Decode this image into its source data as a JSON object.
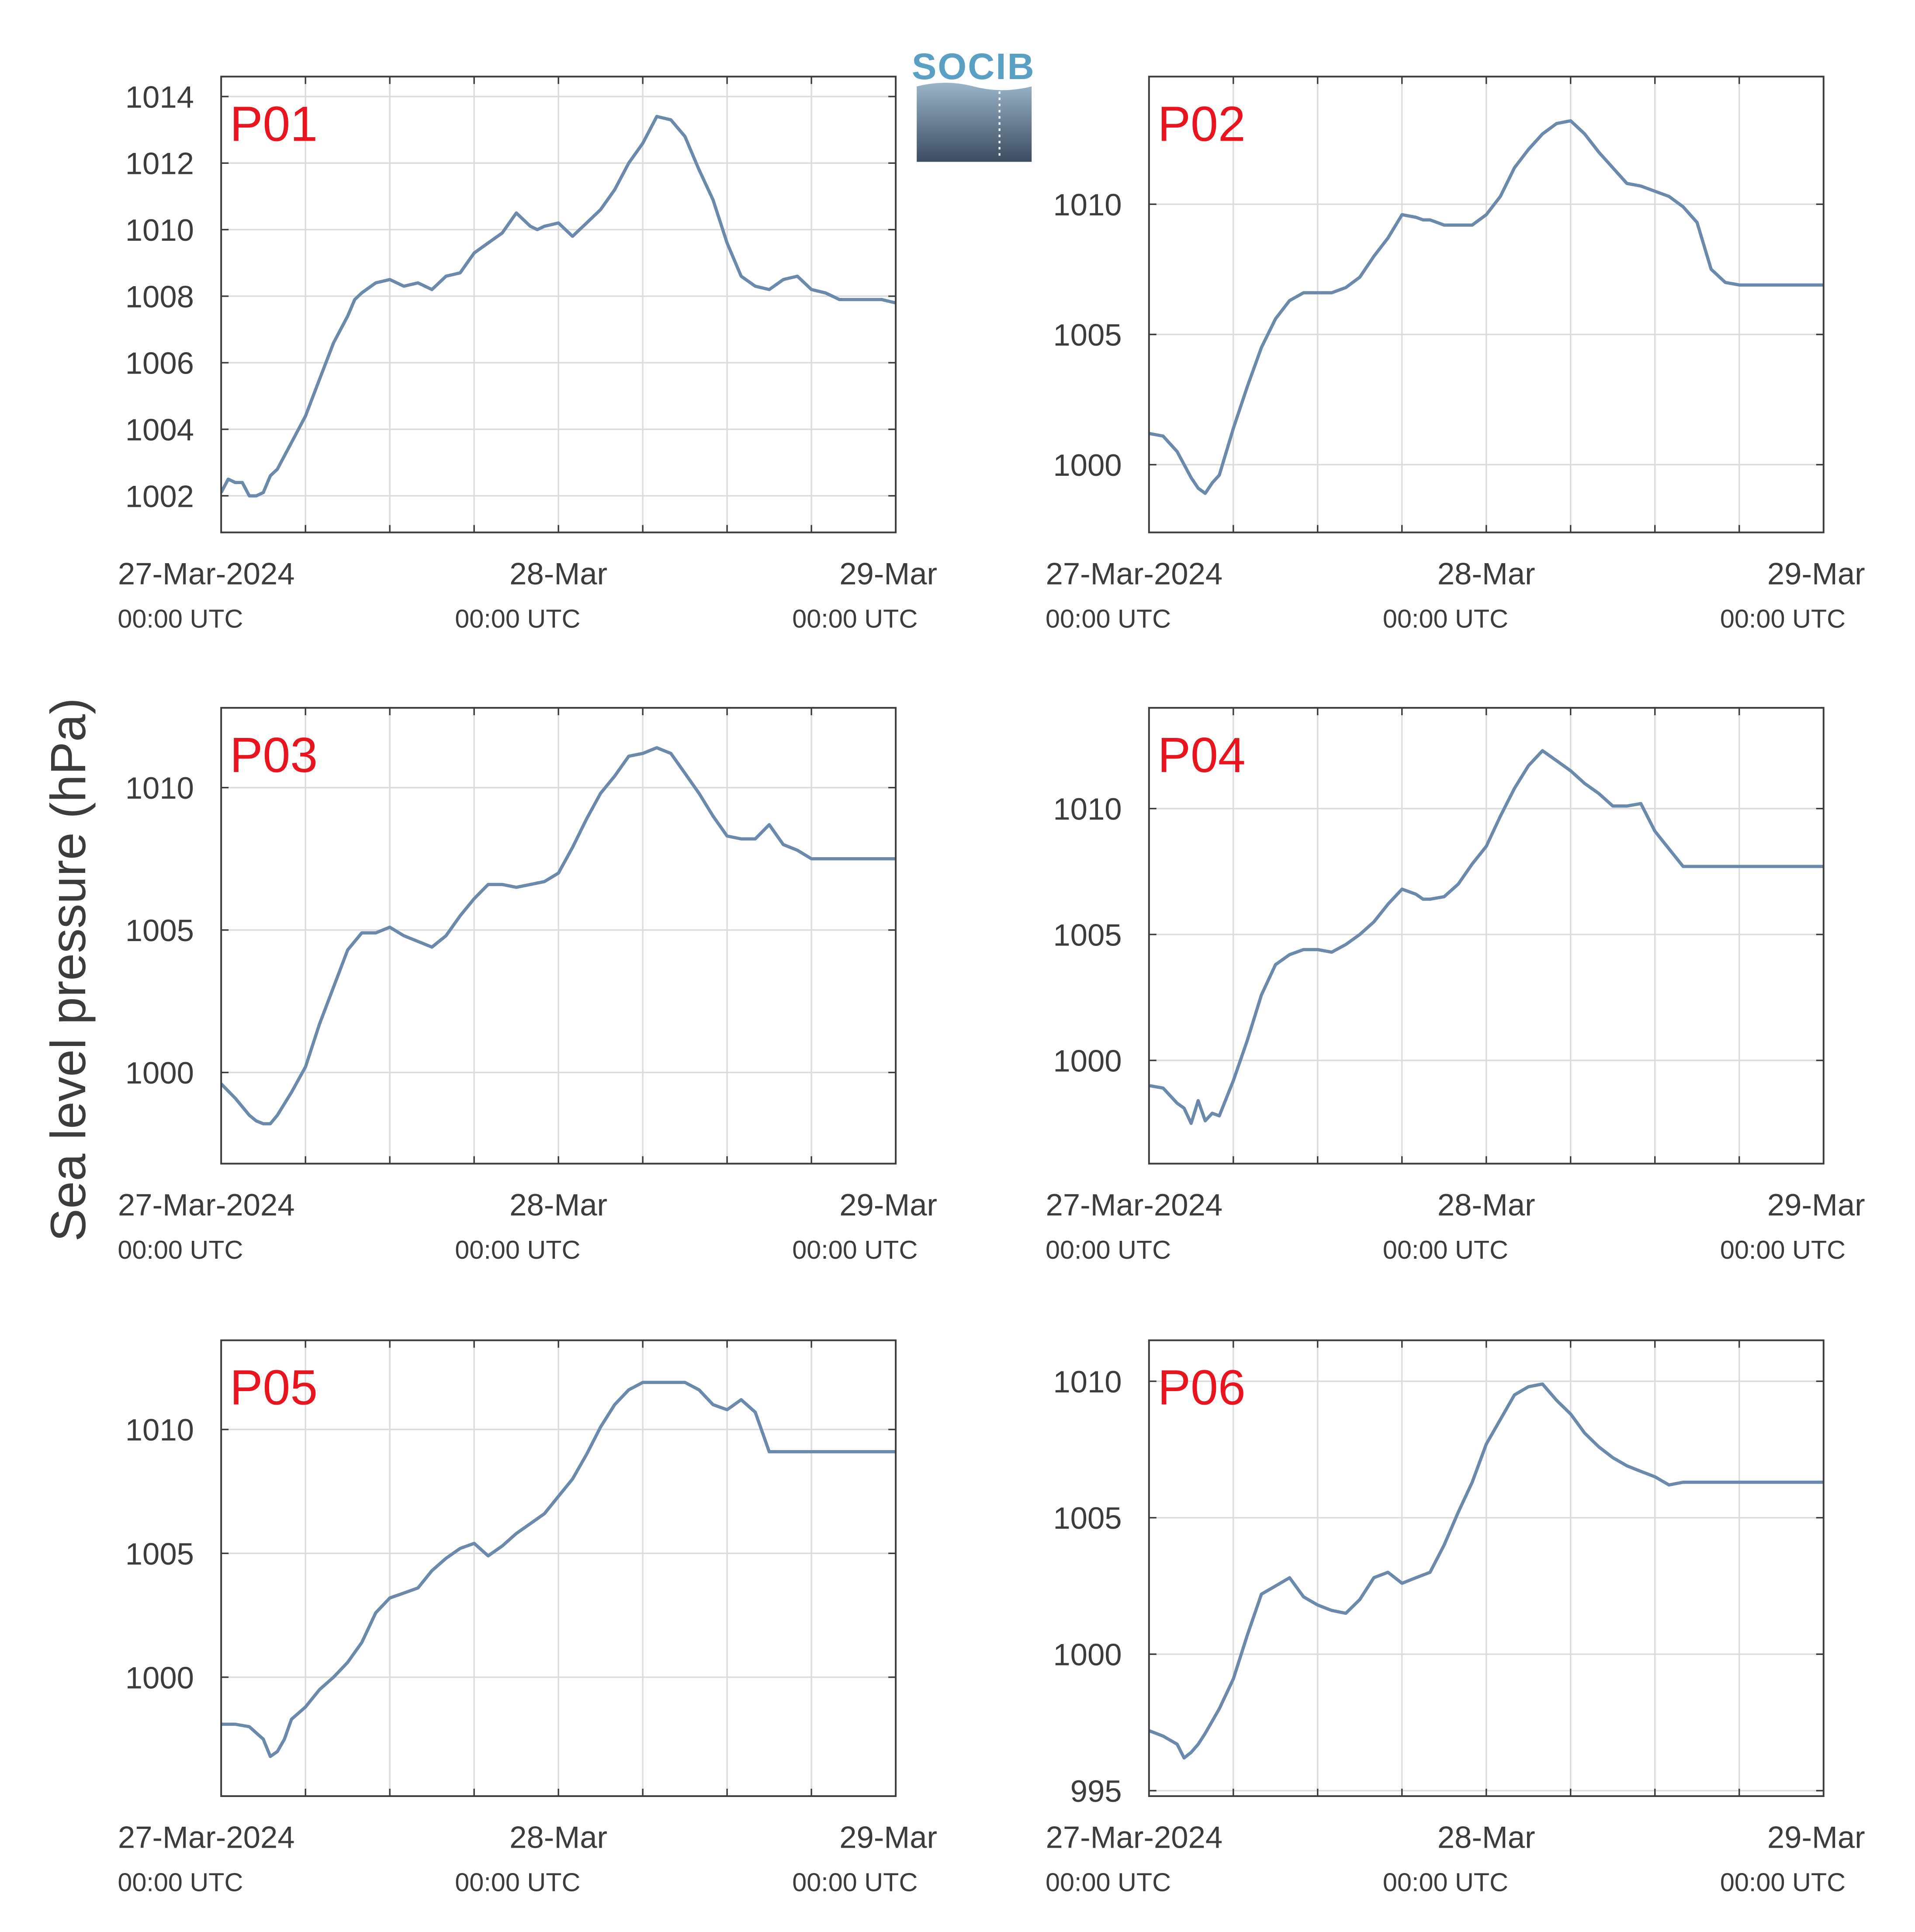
{
  "figure": {
    "ylabel": "Sea level pressure (hPa)",
    "logo_text": "SOCIB",
    "line_color": "#6b89aa",
    "panel_label_color": "#e8151f",
    "grid_color": "#dcdcdc",
    "axis_color": "#3c3c3c",
    "text_color": "#3c3c3c",
    "x_tick_labels": [
      {
        "date": "27-Mar-2024",
        "time": "00:00 UTC"
      },
      {
        "date": "28-Mar",
        "time": "00:00 UTC"
      },
      {
        "date": "29-Mar",
        "time": "00:00 UTC"
      }
    ]
  },
  "chart_data": [
    {
      "type": "line",
      "title": "P01",
      "x_unit": "hours since 27-Mar-2024 00:00 UTC",
      "xlim": [
        0,
        48
      ],
      "ylim": [
        1000.9,
        1014.6
      ],
      "yticks": [
        1002,
        1004,
        1006,
        1008,
        1010,
        1012,
        1014
      ],
      "grid": true,
      "series": [
        {
          "x": [
            0,
            0.5,
            1,
            1.5,
            2,
            2.5,
            3,
            3.5,
            4,
            5,
            6,
            7,
            8,
            9,
            9.5,
            10,
            11,
            12,
            13,
            14,
            15,
            16,
            17,
            18,
            19,
            20,
            21,
            22,
            22.5,
            23,
            24,
            25,
            26,
            27,
            28,
            29,
            30,
            31,
            32,
            33,
            34,
            35,
            36,
            37,
            38,
            39,
            40,
            41,
            42,
            43,
            44,
            45,
            46,
            47,
            48
          ],
          "y": [
            1002.1,
            1002.5,
            1002.4,
            1002.4,
            1002.0,
            1002.0,
            1002.1,
            1002.6,
            1002.8,
            1003.6,
            1004.4,
            1005.5,
            1006.6,
            1007.4,
            1007.9,
            1008.1,
            1008.4,
            1008.5,
            1008.3,
            1008.4,
            1008.2,
            1008.6,
            1008.7,
            1009.3,
            1009.6,
            1009.9,
            1010.5,
            1010.1,
            1010.0,
            1010.1,
            1010.2,
            1009.8,
            1010.2,
            1010.6,
            1011.2,
            1012.0,
            1012.6,
            1013.4,
            1013.3,
            1012.8,
            1011.8,
            1010.9,
            1009.6,
            1008.6,
            1008.3,
            1008.2,
            1008.5,
            1008.6,
            1008.2,
            1008.1,
            1007.9,
            1007.9,
            1007.9,
            1007.9,
            1007.8
          ]
        }
      ]
    },
    {
      "type": "line",
      "title": "P02",
      "x_unit": "hours since 27-Mar-2024 00:00 UTC",
      "xlim": [
        0,
        48
      ],
      "ylim": [
        997.4,
        1014.9
      ],
      "yticks": [
        1000,
        1005,
        1010
      ],
      "grid": true,
      "series": [
        {
          "x": [
            0,
            1,
            2,
            3,
            3.5,
            4,
            4.5,
            5,
            6,
            7,
            8,
            9,
            10,
            11,
            12,
            13,
            14,
            15,
            16,
            17,
            18,
            19,
            19.5,
            20,
            21,
            22,
            23,
            24,
            25,
            26,
            27,
            28,
            29,
            30,
            31,
            32,
            33,
            34,
            35,
            36,
            37,
            38,
            39,
            40,
            41,
            42,
            43,
            44,
            45,
            46,
            47,
            48
          ],
          "y": [
            1001.2,
            1001.1,
            1000.5,
            999.5,
            999.1,
            998.9,
            999.3,
            999.6,
            1001.4,
            1003.0,
            1004.5,
            1005.6,
            1006.3,
            1006.6,
            1006.6,
            1006.6,
            1006.8,
            1007.2,
            1008.0,
            1008.7,
            1009.6,
            1009.5,
            1009.4,
            1009.4,
            1009.2,
            1009.2,
            1009.2,
            1009.6,
            1010.3,
            1011.4,
            1012.1,
            1012.7,
            1013.1,
            1013.2,
            1012.7,
            1012.0,
            1011.4,
            1010.8,
            1010.7,
            1010.5,
            1010.3,
            1009.9,
            1009.3,
            1007.5,
            1007.0,
            1006.9,
            1006.9,
            1006.9,
            1006.9,
            1006.9,
            1006.9,
            1006.9
          ]
        }
      ]
    },
    {
      "type": "line",
      "title": "P03",
      "x_unit": "hours since 27-Mar-2024 00:00 UTC",
      "xlim": [
        0,
        48
      ],
      "ylim": [
        996.8,
        1012.8
      ],
      "yticks": [
        1000,
        1005,
        1010
      ],
      "grid": true,
      "series": [
        {
          "x": [
            0,
            1,
            2,
            2.5,
            3,
            3.5,
            4,
            5,
            6,
            7,
            8,
            9,
            10,
            11,
            12,
            13,
            14,
            15,
            16,
            17,
            18,
            19,
            20,
            21,
            22,
            23,
            24,
            25,
            26,
            27,
            28,
            29,
            30,
            31,
            32,
            33,
            34,
            35,
            36,
            37,
            38,
            39,
            40,
            41,
            42,
            43,
            44,
            45,
            46,
            47,
            48
          ],
          "y": [
            999.6,
            999.1,
            998.5,
            998.3,
            998.2,
            998.2,
            998.5,
            999.3,
            1000.2,
            1001.7,
            1003.0,
            1004.3,
            1004.9,
            1004.9,
            1005.1,
            1004.8,
            1004.6,
            1004.4,
            1004.8,
            1005.5,
            1006.1,
            1006.6,
            1006.6,
            1006.5,
            1006.6,
            1006.7,
            1007.0,
            1007.9,
            1008.9,
            1009.8,
            1010.4,
            1011.1,
            1011.2,
            1011.4,
            1011.2,
            1010.5,
            1009.8,
            1009.0,
            1008.3,
            1008.2,
            1008.2,
            1008.7,
            1008.0,
            1007.8,
            1007.5,
            1007.5,
            1007.5,
            1007.5,
            1007.5,
            1007.5,
            1007.5
          ]
        }
      ]
    },
    {
      "type": "line",
      "title": "P04",
      "x_unit": "hours since 27-Mar-2024 00:00 UTC",
      "xlim": [
        0,
        48
      ],
      "ylim": [
        995.9,
        1014.0
      ],
      "yticks": [
        1000,
        1005,
        1010
      ],
      "grid": true,
      "series": [
        {
          "x": [
            0,
            1,
            2,
            2.5,
            3,
            3.5,
            4,
            4.5,
            5,
            6,
            7,
            8,
            9,
            10,
            11,
            12,
            13,
            14,
            15,
            16,
            17,
            18,
            19,
            19.5,
            20,
            21,
            22,
            23,
            24,
            25,
            26,
            27,
            28,
            29,
            30,
            31,
            32,
            33,
            34,
            35,
            36,
            37,
            38,
            39,
            40,
            41,
            42,
            43,
            44,
            45,
            46,
            47,
            48
          ],
          "y": [
            999.0,
            998.9,
            998.3,
            998.1,
            997.5,
            998.4,
            997.6,
            997.9,
            997.8,
            999.2,
            1000.8,
            1002.6,
            1003.8,
            1004.2,
            1004.4,
            1004.4,
            1004.3,
            1004.6,
            1005.0,
            1005.5,
            1006.2,
            1006.8,
            1006.6,
            1006.4,
            1006.4,
            1006.5,
            1007.0,
            1007.8,
            1008.5,
            1009.7,
            1010.8,
            1011.7,
            1012.3,
            1011.9,
            1011.5,
            1011.0,
            1010.6,
            1010.1,
            1010.1,
            1010.2,
            1009.1,
            1008.4,
            1007.7,
            1007.7,
            1007.7,
            1007.7,
            1007.7,
            1007.7,
            1007.7,
            1007.7,
            1007.7,
            1007.7,
            1007.7
          ]
        }
      ]
    },
    {
      "type": "line",
      "title": "P05",
      "x_unit": "hours since 27-Mar-2024 00:00 UTC",
      "xlim": [
        0,
        48
      ],
      "ylim": [
        995.2,
        1013.6
      ],
      "yticks": [
        1000,
        1005,
        1010
      ],
      "grid": true,
      "series": [
        {
          "x": [
            0,
            1,
            2,
            3,
            3.5,
            4,
            4.5,
            5,
            6,
            7,
            8,
            9,
            10,
            11,
            12,
            13,
            14,
            15,
            16,
            17,
            18,
            19,
            20,
            21,
            22,
            23,
            24,
            25,
            26,
            27,
            28,
            29,
            30,
            31,
            32,
            33,
            34,
            35,
            36,
            37,
            38,
            39,
            40,
            41,
            42,
            43,
            44,
            45,
            46,
            47,
            48
          ],
          "y": [
            998.1,
            998.1,
            998.0,
            997.5,
            996.8,
            997.0,
            997.5,
            998.3,
            998.8,
            999.5,
            1000.0,
            1000.6,
            1001.4,
            1002.6,
            1003.2,
            1003.4,
            1003.6,
            1004.3,
            1004.8,
            1005.2,
            1005.4,
            1004.9,
            1005.3,
            1005.8,
            1006.2,
            1006.6,
            1007.3,
            1008.0,
            1009.0,
            1010.1,
            1011.0,
            1011.6,
            1011.9,
            1011.9,
            1011.9,
            1011.9,
            1011.6,
            1011.0,
            1010.8,
            1011.2,
            1010.7,
            1009.1,
            1009.1,
            1009.1,
            1009.1,
            1009.1,
            1009.1,
            1009.1,
            1009.1,
            1009.1,
            1009.1
          ]
        }
      ]
    },
    {
      "type": "line",
      "title": "P06",
      "x_unit": "hours since 27-Mar-2024 00:00 UTC",
      "xlim": [
        0,
        48
      ],
      "ylim": [
        994.8,
        1011.5
      ],
      "yticks": [
        995,
        1000,
        1005,
        1010
      ],
      "grid": true,
      "series": [
        {
          "x": [
            0,
            1,
            2,
            2.5,
            3,
            3.5,
            4,
            5,
            6,
            7,
            8,
            9,
            10,
            11,
            12,
            13,
            14,
            15,
            16,
            17,
            18,
            19,
            20,
            21,
            22,
            23,
            24,
            25,
            26,
            27,
            28,
            29,
            30,
            31,
            32,
            33,
            34,
            35,
            36,
            37,
            38,
            39,
            40,
            41,
            42,
            43,
            44,
            45,
            46,
            47,
            48
          ],
          "y": [
            997.2,
            997.0,
            996.7,
            996.2,
            996.4,
            996.7,
            997.1,
            998.0,
            999.1,
            1000.7,
            1002.2,
            1002.5,
            1002.8,
            1002.1,
            1001.8,
            1001.6,
            1001.5,
            1002.0,
            1002.8,
            1003.0,
            1002.6,
            1002.8,
            1003.0,
            1004.0,
            1005.2,
            1006.3,
            1007.7,
            1008.6,
            1009.5,
            1009.8,
            1009.9,
            1009.3,
            1008.8,
            1008.1,
            1007.6,
            1007.2,
            1006.9,
            1006.7,
            1006.5,
            1006.2,
            1006.3,
            1006.3,
            1006.3,
            1006.3,
            1006.3,
            1006.3,
            1006.3,
            1006.3,
            1006.3,
            1006.3,
            1006.3
          ]
        }
      ]
    }
  ]
}
